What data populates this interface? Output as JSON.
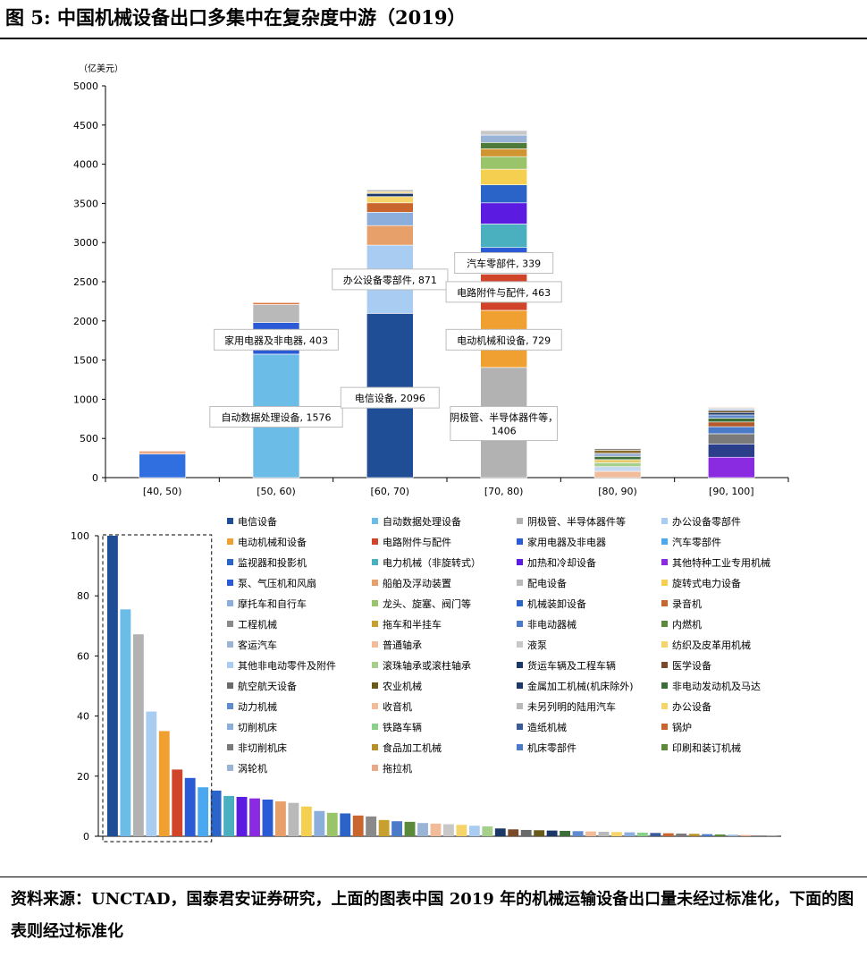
{
  "figure": {
    "title": "图 5:  中国机械设备出口多集中在复杂度中游（2019）",
    "source": "资料来源：UNCTAD，国泰君安证券研究，上面的图表中国 2019 年的机械运输设备出口量未经过标准化，下面的图表则经过标准化"
  },
  "chart_data": [
    {
      "type": "bar",
      "stacked": true,
      "unit_label": "（亿美元）",
      "ylim": [
        0,
        5000
      ],
      "yticks": [
        0,
        500,
        1000,
        1500,
        2000,
        2500,
        3000,
        3500,
        4000,
        4500,
        5000
      ],
      "categories": [
        "[40, 50)",
        "[50, 60)",
        "[60, 70)",
        "[70, 80)",
        "[80, 90)",
        "[90, 100]"
      ],
      "stacks": [
        [
          {
            "value": 300,
            "color": "#2f6fe0"
          },
          {
            "value": 40,
            "color": "#e8a98a"
          }
        ],
        [
          {
            "value": 1576,
            "color": "#6cbce8"
          },
          {
            "value": 70,
            "color": "#2a5ad6"
          },
          {
            "value": 333,
            "color": "#2a5ad6"
          },
          {
            "value": 230,
            "color": "#b9b9b9"
          },
          {
            "value": 25,
            "color": "#e07a45"
          }
        ],
        [
          {
            "value": 2096,
            "color": "#1f4e96"
          },
          {
            "value": 871,
            "color": "#a8ccf2"
          },
          {
            "value": 250,
            "color": "#e8a06a"
          },
          {
            "value": 170,
            "color": "#8caedc"
          },
          {
            "value": 120,
            "color": "#c8662e"
          },
          {
            "value": 80,
            "color": "#f5d46a"
          },
          {
            "value": 40,
            "color": "#1c3866"
          },
          {
            "value": 25,
            "color": "#f3d98e"
          },
          {
            "value": 20,
            "color": "#a5a5a5"
          }
        ],
        [
          {
            "value": 1406,
            "color": "#b2b2b2"
          },
          {
            "value": 729,
            "color": "#f0a030"
          },
          {
            "value": 463,
            "color": "#d0442a"
          },
          {
            "value": 60,
            "color": "#6cbce8"
          },
          {
            "value": 279,
            "color": "#2a5ad6"
          },
          {
            "value": 300,
            "color": "#4ab0c0"
          },
          {
            "value": 270,
            "color": "#5b1be0"
          },
          {
            "value": 230,
            "color": "#2a64c8"
          },
          {
            "value": 200,
            "color": "#f5d050"
          },
          {
            "value": 160,
            "color": "#9ac46a"
          },
          {
            "value": 100,
            "color": "#d09430"
          },
          {
            "value": 80,
            "color": "#4f7a3a"
          },
          {
            "value": 95,
            "color": "#9ab4d8"
          },
          {
            "value": 58,
            "color": "#c8c8c8"
          }
        ],
        [
          {
            "value": 80,
            "color": "#f2bc9a"
          },
          {
            "value": 60,
            "color": "#c6d9f0"
          },
          {
            "value": 50,
            "color": "#a6cf8c"
          },
          {
            "value": 40,
            "color": "#e6c96a"
          },
          {
            "value": 40,
            "color": "#3c6e3a"
          },
          {
            "value": 40,
            "color": "#9aaed6"
          },
          {
            "value": 40,
            "color": "#8a6c2a"
          },
          {
            "value": 20,
            "color": "#8a8a8a"
          }
        ],
        [
          {
            "value": 260,
            "color": "#8a2be2"
          },
          {
            "value": 170,
            "color": "#2a3e8a"
          },
          {
            "value": 130,
            "color": "#7a7a7a"
          },
          {
            "value": 90,
            "color": "#4a7ac8"
          },
          {
            "value": 60,
            "color": "#b45a2a"
          },
          {
            "value": 50,
            "color": "#3c6e3a"
          },
          {
            "value": 40,
            "color": "#5f8ad0"
          },
          {
            "value": 30,
            "color": "#1c3866"
          },
          {
            "value": 25,
            "color": "#6a4a1a"
          },
          {
            "value": 20,
            "color": "#9ab4d8"
          },
          {
            "value": 15,
            "color": "#c8c8c8"
          },
          {
            "value": 10,
            "color": "#f2bc9a"
          }
        ]
      ],
      "annotations": [
        {
          "category": 1,
          "text": "自动数据处理设备, 1576",
          "value": 776
        },
        {
          "category": 1,
          "text": "家用电器及非电器, 403",
          "value": 1760
        },
        {
          "category": 2,
          "text": "电信设备, 2096",
          "value": 1020
        },
        {
          "category": 2,
          "text": "办公设备零部件, 871",
          "value": 2530
        },
        {
          "category": 3,
          "text": "阴极管、半导体器件等，\n1406",
          "value": 690
        },
        {
          "category": 3,
          "text": "电动机械和设备, 729",
          "value": 1760
        },
        {
          "category": 3,
          "text": "电路附件与配件, 463",
          "value": 2370
        },
        {
          "category": 3,
          "text": "汽车零部件, 339",
          "value": 2740
        }
      ]
    },
    {
      "type": "bar",
      "ylim": [
        0,
        100
      ],
      "yticks": [
        0,
        20,
        40,
        60,
        80,
        100
      ],
      "values": [
        100,
        75.5,
        67.2,
        41.5,
        35,
        22.2,
        19.4,
        16.3,
        15.2,
        13.4,
        13.1,
        12.6,
        12.2,
        11.6,
        11.1,
        9.9,
        8.4,
        7.8,
        7.6,
        6.9,
        6.6,
        5.4,
        5.0,
        4.8,
        4.4,
        4.2,
        4.0,
        3.8,
        3.5,
        3.3,
        2.6,
        2.3,
        2.1,
        2.0,
        1.9,
        1.8,
        1.7,
        1.6,
        1.5,
        1.4,
        1.3,
        1.2,
        1.1,
        1.0,
        0.9,
        0.8,
        0.7,
        0.6,
        0.5,
        0.4,
        0.3,
        0.2
      ],
      "colors": [
        "#1f4e96",
        "#6cbce8",
        "#b2b2b2",
        "#a8ccf2",
        "#f0a030",
        "#d0442a",
        "#2a5ad6",
        "#4aa8f0",
        "#2a64c8",
        "#4ab0c0",
        "#5b1be0",
        "#8a2be2",
        "#2a5ad6",
        "#e8a06a",
        "#b9b9b9",
        "#f5d050",
        "#8caedc",
        "#9ac46a",
        "#2a64c8",
        "#c8662e",
        "#8a8a8a",
        "#c8a030",
        "#4a7ac8",
        "#5a8a3a",
        "#9ab4d8",
        "#f2bc9a",
        "#c8c8c8",
        "#f5d46a",
        "#a8ccf2",
        "#a6cf8c",
        "#1c3866",
        "#7a4a2a",
        "#6a6a6a",
        "#6a5a1a",
        "#1c3866",
        "#3c6e3a",
        "#5f8ad0",
        "#f2bc9a",
        "#b9b9b9",
        "#f5d46a",
        "#8caedc",
        "#8ad08a",
        "#3a5a9a",
        "#c8662e",
        "#7a7a7a",
        "#b8902a",
        "#4a7ac8",
        "#5a8a3a",
        "#9ab4d8",
        "#e8a98a",
        "#8a8a8a",
        "#7a7a7a"
      ],
      "highlight_count": 8,
      "legend": [
        {
          "label": "电信设备",
          "color": "#1f4e96"
        },
        {
          "label": "自动数据处理设备",
          "color": "#6cbce8"
        },
        {
          "label": "阴极管、半导体器件等",
          "color": "#b2b2b2"
        },
        {
          "label": "办公设备零部件",
          "color": "#a8ccf2"
        },
        {
          "label": "电动机械和设备",
          "color": "#f0a030"
        },
        {
          "label": "电路附件与配件",
          "color": "#d0442a"
        },
        {
          "label": "家用电器及非电器",
          "color": "#2a5ad6"
        },
        {
          "label": "汽车零部件",
          "color": "#4aa8f0"
        },
        {
          "label": "监视器和投影机",
          "color": "#2a64c8"
        },
        {
          "label": "电力机械（非旋转式）",
          "color": "#4ab0c0"
        },
        {
          "label": "加热和冷却设备",
          "color": "#5b1be0"
        },
        {
          "label": "其他特种工业专用机械",
          "color": "#8a2be2"
        },
        {
          "label": "泵、气压机和风扇",
          "color": "#2a5ad6"
        },
        {
          "label": "船舶及浮动装置",
          "color": "#e8a06a"
        },
        {
          "label": "配电设备",
          "color": "#b9b9b9"
        },
        {
          "label": "旋转式电力设备",
          "color": "#f5d050"
        },
        {
          "label": "摩托车和自行车",
          "color": "#8caedc"
        },
        {
          "label": "龙头、旋塞、阀门等",
          "color": "#9ac46a"
        },
        {
          "label": "机械装卸设备",
          "color": "#2a64c8"
        },
        {
          "label": "录音机",
          "color": "#c8662e"
        },
        {
          "label": "工程机械",
          "color": "#8a8a8a"
        },
        {
          "label": "拖车和半挂车",
          "color": "#c8a030"
        },
        {
          "label": "非电动器械",
          "color": "#4a7ac8"
        },
        {
          "label": "内燃机",
          "color": "#5a8a3a"
        },
        {
          "label": "客运汽车",
          "color": "#9ab4d8"
        },
        {
          "label": "普通轴承",
          "color": "#f2bc9a"
        },
        {
          "label": "液泵",
          "color": "#c8c8c8"
        },
        {
          "label": "纺织及皮革用机械",
          "color": "#f5d46a"
        },
        {
          "label": "其他非电动零件及附件",
          "color": "#a8ccf2"
        },
        {
          "label": "滚珠轴承或滚柱轴承",
          "color": "#a6cf8c"
        },
        {
          "label": "货运车辆及工程车辆",
          "color": "#1c3866"
        },
        {
          "label": "医学设备",
          "color": "#7a4a2a"
        },
        {
          "label": "航空航天设备",
          "color": "#6a6a6a"
        },
        {
          "label": "农业机械",
          "color": "#6a5a1a"
        },
        {
          "label": "金属加工机械(机床除外)",
          "color": "#1c3866"
        },
        {
          "label": "非电动发动机及马达",
          "color": "#3c6e3a"
        },
        {
          "label": "动力机械",
          "color": "#5f8ad0"
        },
        {
          "label": "收音机",
          "color": "#f2bc9a"
        },
        {
          "label": "未另列明的陆用汽车",
          "color": "#b9b9b9"
        },
        {
          "label": "办公设备",
          "color": "#f5d46a"
        },
        {
          "label": "切削机床",
          "color": "#8caedc"
        },
        {
          "label": "铁路车辆",
          "color": "#8ad08a"
        },
        {
          "label": "造纸机械",
          "color": "#3a5a9a"
        },
        {
          "label": "锅炉",
          "color": "#c8662e"
        },
        {
          "label": "非切削机床",
          "color": "#7a7a7a"
        },
        {
          "label": "食品加工机械",
          "color": "#b8902a"
        },
        {
          "label": "机床零部件",
          "color": "#4a7ac8"
        },
        {
          "label": "印刷和装订机械",
          "color": "#5a8a3a"
        },
        {
          "label": "涡轮机",
          "color": "#9ab4d8"
        },
        {
          "label": "拖拉机",
          "color": "#e8a98a"
        }
      ]
    }
  ]
}
